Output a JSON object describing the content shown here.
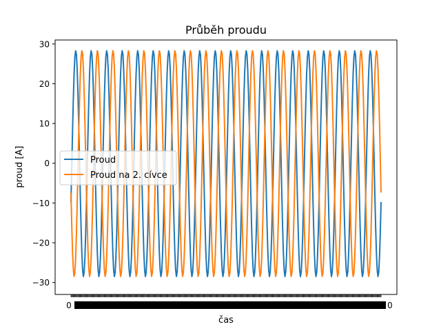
{
  "chart_data": {
    "type": "line",
    "title": "Průběh proudu",
    "xlabel": "čas",
    "ylabel": "proud [A]",
    "ylim": [
      -33,
      31
    ],
    "yticks": [
      -30,
      -20,
      -10,
      0,
      10,
      20,
      30
    ],
    "ytick_labels": [
      "−30",
      "−20",
      "−10",
      "0",
      "10",
      "20",
      "30"
    ],
    "x_tick_labels_note": "x tick labels are dense and overlapping; first reads 0, last reads 0",
    "x_tick_first": "0",
    "x_tick_last": "0",
    "x": {
      "start": 0,
      "end": 1,
      "samples": 400
    },
    "series": [
      {
        "name": "Proud",
        "color": "#1f77b4",
        "amplitude": 28.5,
        "cycles": 20,
        "phase_deg": -20
      },
      {
        "name": "Proud na 2. cívce",
        "color": "#ff7f0e",
        "amplitude": 28.5,
        "cycles": 20,
        "phase_deg": 195
      }
    ],
    "legend": {
      "placement": "center-left"
    }
  }
}
